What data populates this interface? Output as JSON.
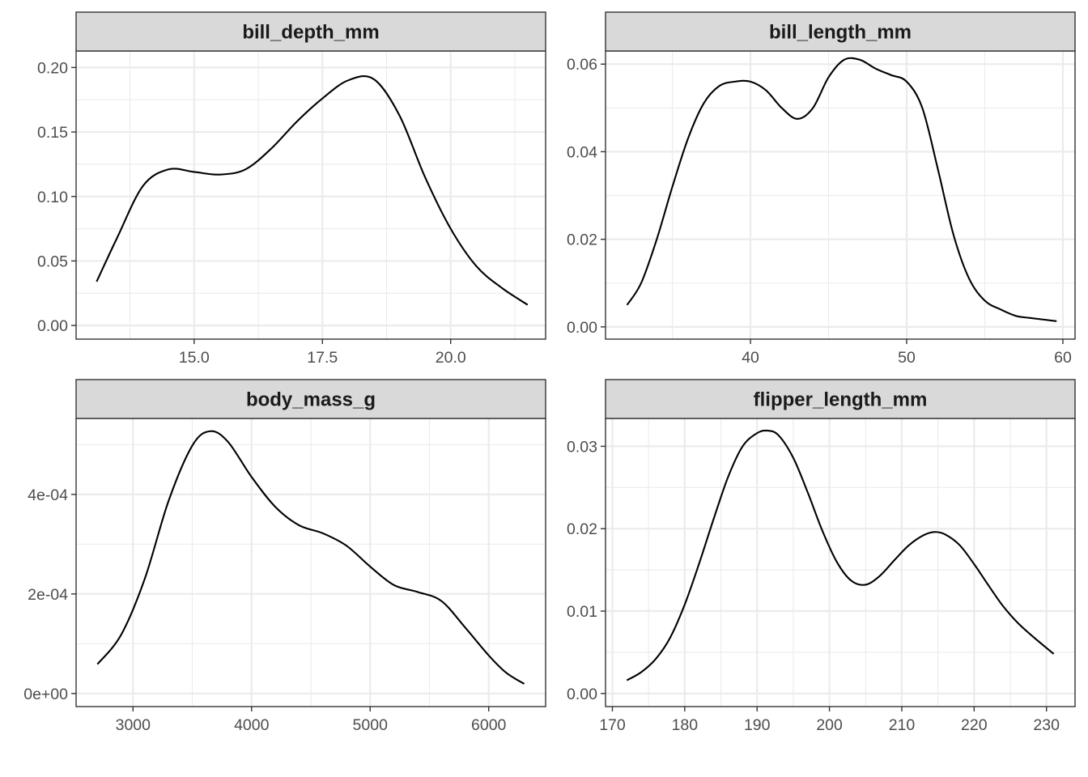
{
  "chart_data": [
    {
      "type": "line",
      "title": "bill_depth_mm",
      "xlabel": "",
      "ylabel": "",
      "xlim": [
        12.7,
        21.85
      ],
      "ylim": [
        -0.0106,
        0.2128
      ],
      "x_ticks": [
        15.0,
        17.5,
        20.0
      ],
      "x_tick_labels": [
        "15.0",
        "17.5",
        "20.0"
      ],
      "y_ticks": [
        0,
        0.05,
        0.1,
        0.15,
        0.2
      ],
      "y_tick_labels": [
        "0.00",
        "0.05",
        "0.10",
        "0.15",
        "0.20"
      ],
      "grid": true,
      "series": [
        {
          "x": [
            13.1,
            13.5,
            14.0,
            14.5,
            15.0,
            15.5,
            16.0,
            16.5,
            17.0,
            17.5,
            18.0,
            18.5,
            19.0,
            19.5,
            20.0,
            20.5,
            21.0,
            21.5
          ],
          "y": [
            0.034,
            0.068,
            0.108,
            0.121,
            0.119,
            0.117,
            0.121,
            0.137,
            0.158,
            0.176,
            0.19,
            0.191,
            0.163,
            0.115,
            0.075,
            0.046,
            0.029,
            0.016
          ]
        }
      ]
    },
    {
      "type": "line",
      "title": "bill_length_mm",
      "xlabel": "",
      "ylabel": "",
      "xlim": [
        30.72,
        60.78
      ],
      "ylim": [
        -0.0028,
        0.063
      ],
      "x_ticks": [
        40,
        50,
        60
      ],
      "x_tick_labels": [
        "40",
        "50",
        "60"
      ],
      "y_ticks": [
        0,
        0.02,
        0.04,
        0.06
      ],
      "y_tick_labels": [
        "0.00",
        "0.02",
        "0.04",
        "0.06"
      ],
      "grid": true,
      "series": [
        {
          "x": [
            32.1,
            33,
            34,
            35,
            36,
            37,
            38,
            39,
            40,
            41,
            42,
            43,
            44,
            45,
            46,
            47,
            48,
            49,
            50,
            51,
            52,
            53,
            54,
            55,
            56,
            57,
            58,
            59.6
          ],
          "y": [
            0.005,
            0.01,
            0.02,
            0.032,
            0.043,
            0.051,
            0.055,
            0.056,
            0.056,
            0.054,
            0.05,
            0.0475,
            0.05,
            0.057,
            0.061,
            0.061,
            0.059,
            0.0575,
            0.056,
            0.05,
            0.036,
            0.021,
            0.011,
            0.006,
            0.004,
            0.0025,
            0.002,
            0.0013
          ]
        }
      ]
    },
    {
      "type": "line",
      "title": "body_mass_g",
      "xlabel": "",
      "ylabel": "",
      "xlim": [
        2520,
        6480
      ],
      "ylim": [
        -2.63e-05,
        0.0005526
      ],
      "x_ticks": [
        3000,
        4000,
        5000,
        6000
      ],
      "x_tick_labels": [
        "3000",
        "4000",
        "5000",
        "6000"
      ],
      "y_ticks": [
        0,
        0.0002,
        0.0004
      ],
      "y_tick_labels": [
        "0e+00",
        "2e-04",
        "4e-04"
      ],
      "grid": true,
      "series": [
        {
          "x": [
            2700,
            2900,
            3100,
            3300,
            3500,
            3650,
            3800,
            4000,
            4200,
            4400,
            4600,
            4800,
            5000,
            5200,
            5400,
            5600,
            5800,
            6000,
            6150,
            6300
          ],
          "y": [
            5.88e-05,
            0.000118,
            0.000231,
            0.000387,
            0.000498,
            0.000527,
            0.000506,
            0.000435,
            0.000375,
            0.000338,
            0.000322,
            0.000297,
            0.000255,
            0.000218,
            0.000204,
            0.000186,
            0.000133,
            7.65e-05,
            4.12e-05,
            1.94e-05
          ]
        }
      ]
    },
    {
      "type": "line",
      "title": "flipper_length_mm",
      "xlabel": "",
      "ylabel": "",
      "xlim": [
        169.05,
        233.95
      ],
      "ylim": [
        -0.00159,
        0.03338
      ],
      "x_ticks": [
        170,
        180,
        190,
        200,
        210,
        220,
        230
      ],
      "x_tick_labels": [
        "170",
        "180",
        "190",
        "200",
        "210",
        "220",
        "230"
      ],
      "y_ticks": [
        0,
        0.01,
        0.02,
        0.03
      ],
      "y_tick_labels": [
        "0.00",
        "0.01",
        "0.02",
        "0.03"
      ],
      "grid": true,
      "series": [
        {
          "x": [
            172,
            174,
            176,
            178,
            180,
            182,
            184,
            186,
            188,
            190,
            191.5,
            193,
            195,
            197,
            199,
            201,
            203,
            205,
            207,
            209,
            211,
            213,
            214.5,
            216,
            218,
            220,
            222,
            224,
            226,
            228,
            231
          ],
          "y": [
            0.0016,
            0.0026,
            0.0042,
            0.0068,
            0.0108,
            0.0158,
            0.0212,
            0.0263,
            0.03,
            0.0316,
            0.0319,
            0.0313,
            0.0286,
            0.0244,
            0.0198,
            0.016,
            0.0137,
            0.0132,
            0.0143,
            0.0162,
            0.018,
            0.0192,
            0.0196,
            0.0193,
            0.018,
            0.0157,
            0.0131,
            0.0106,
            0.0086,
            0.007,
            0.0048
          ]
        }
      ]
    }
  ]
}
